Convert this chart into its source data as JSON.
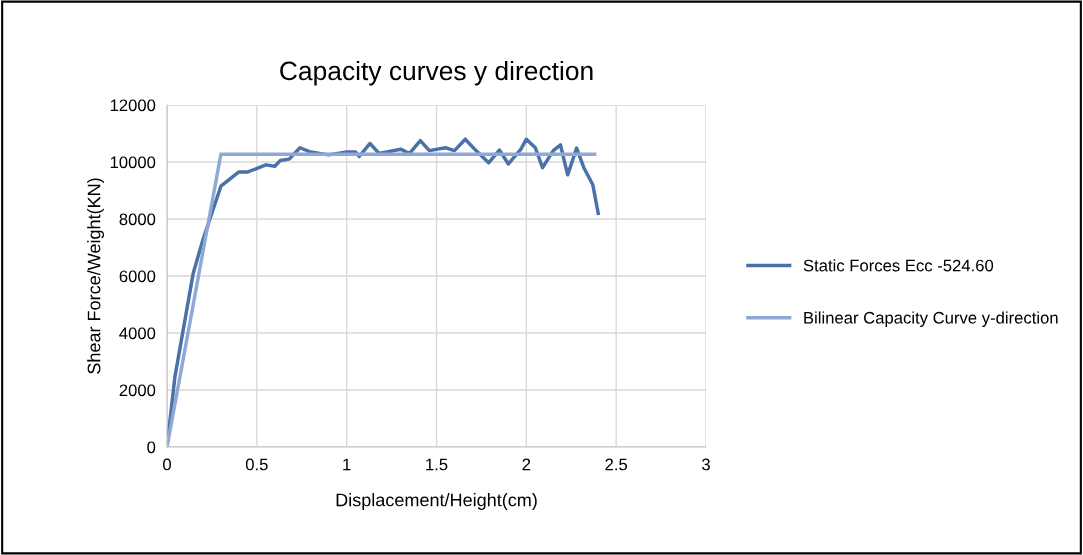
{
  "chart_data": {
    "type": "line",
    "title": "Capacity curves y direction",
    "xlabel": "Displacement/Height(cm)",
    "ylabel": "Shear Force/Weight(KN)",
    "xlim": [
      0,
      3
    ],
    "xticks": [
      0,
      0.5,
      1,
      1.5,
      2,
      2.5,
      3
    ],
    "ylim": [
      0,
      12000
    ],
    "yticks": [
      0,
      2000,
      4000,
      6000,
      8000,
      10000,
      12000
    ],
    "grid": true,
    "legend": "right",
    "marker": "none",
    "series": [
      {
        "name": "Static Forces Ecc -524.60",
        "color": "#4a72a8",
        "x": [
          0,
          0.044,
          0.146,
          0.2,
          0.3,
          0.4,
          0.45,
          0.55,
          0.6,
          0.63,
          0.68,
          0.74,
          0.8,
          0.9,
          1.0,
          1.05,
          1.07,
          1.13,
          1.18,
          1.3,
          1.35,
          1.41,
          1.46,
          1.55,
          1.6,
          1.66,
          1.72,
          1.79,
          1.85,
          1.9,
          1.97,
          2.0,
          2.05,
          2.09,
          2.15,
          2.19,
          2.23,
          2.28,
          2.32,
          2.37,
          2.4
        ],
        "values": [
          0,
          2460,
          6100,
          7270,
          9150,
          9650,
          9650,
          9900,
          9850,
          10050,
          10100,
          10500,
          10350,
          10250,
          10350,
          10350,
          10200,
          10650,
          10300,
          10450,
          10300,
          10750,
          10400,
          10500,
          10400,
          10800,
          10400,
          9970,
          10420,
          9930,
          10450,
          10800,
          10500,
          9800,
          10400,
          10600,
          9550,
          10490,
          9800,
          9200,
          8200
        ]
      },
      {
        "name": "Bilinear Capacity Curve y-direction",
        "color": "#8fa8d4",
        "x": [
          0,
          0.3,
          2.38
        ],
        "values": [
          0,
          10270,
          10270
        ]
      }
    ]
  }
}
